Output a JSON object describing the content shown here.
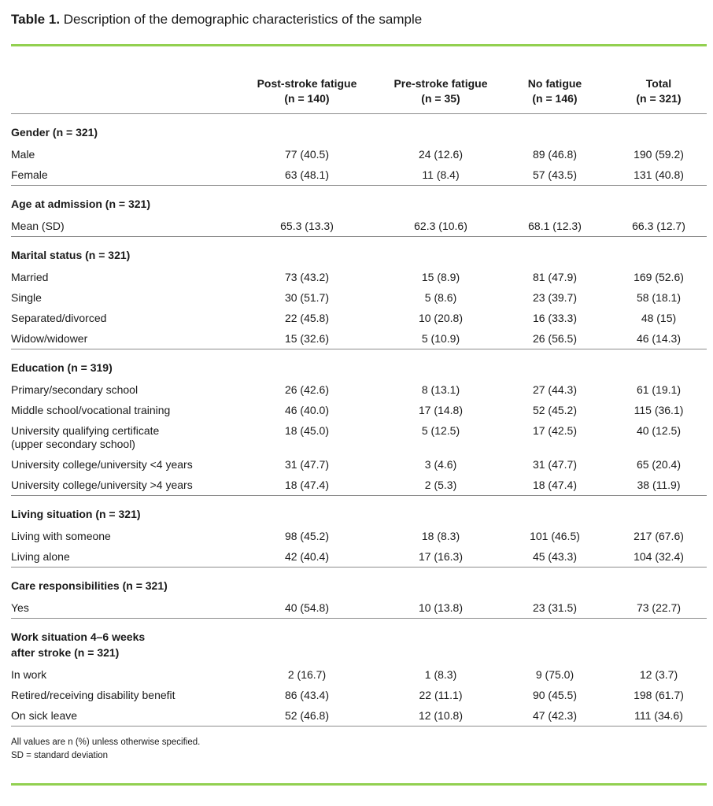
{
  "title": {
    "label": "Table 1.",
    "text": " Description of the demographic characteristics of the sample"
  },
  "colors": {
    "accent_green": "#92d050",
    "separator_gray": "#8c8c8c",
    "text": "#1a1a1a"
  },
  "table": {
    "columns": [
      {
        "line1": "Post-stroke fatigue",
        "line2": "(n = 140)"
      },
      {
        "line1": "Pre-stroke fatigue",
        "line2": "(n = 35)"
      },
      {
        "line1": "No fatigue",
        "line2": "(n = 146)"
      },
      {
        "line1": "Total",
        "line2": "(n = 321)"
      }
    ],
    "sections": [
      {
        "header": "Gender (n = 321)",
        "rows": [
          {
            "label": "Male",
            "values": [
              "77 (40.5)",
              "24 (12.6)",
              "89 (46.8)",
              "190 (59.2)"
            ]
          },
          {
            "label": "Female",
            "values": [
              "63 (48.1)",
              "11 (8.4)",
              "57 (43.5)",
              "131 (40.8)"
            ]
          }
        ]
      },
      {
        "header": "Age at admission (n = 321)",
        "rows": [
          {
            "label": "Mean (SD)",
            "values": [
              "65.3 (13.3)",
              "62.3 (10.6)",
              "68.1 (12.3)",
              "66.3 (12.7)"
            ]
          }
        ]
      },
      {
        "header": "Marital status (n = 321)",
        "rows": [
          {
            "label": "Married",
            "values": [
              "73 (43.2)",
              "15 (8.9)",
              "81 (47.9)",
              "169 (52.6)"
            ]
          },
          {
            "label": "Single",
            "values": [
              "30 (51.7)",
              "5 (8.6)",
              "23 (39.7)",
              "58 (18.1)"
            ]
          },
          {
            "label": "Separated/divorced",
            "values": [
              "22 (45.8)",
              "10 (20.8)",
              "16 (33.3)",
              "48 (15)"
            ]
          },
          {
            "label": "Widow/widower",
            "values": [
              "15 (32.6)",
              "5 (10.9)",
              "26 (56.5)",
              "46 (14.3)"
            ]
          }
        ]
      },
      {
        "header": "Education (n = 319)",
        "rows": [
          {
            "label": "Primary/secondary school",
            "values": [
              "26 (42.6)",
              "8 (13.1)",
              "27 (44.3)",
              "61 (19.1)"
            ]
          },
          {
            "label": "Middle school/vocational training",
            "values": [
              "46 (40.0)",
              "17 (14.8)",
              "52 (45.2)",
              "115 (36.1)"
            ]
          },
          {
            "label": "University qualifying certificate\n(upper secondary school)",
            "values": [
              "18 (45.0)",
              "5 (12.5)",
              "17 (42.5)",
              "40 (12.5)"
            ]
          },
          {
            "label": "University college/university <4 years",
            "values": [
              "31 (47.7)",
              "3 (4.6)",
              "31 (47.7)",
              "65 (20.4)"
            ]
          },
          {
            "label": "University college/university >4 years",
            "values": [
              "18 (47.4)",
              "2 (5.3)",
              "18 (47.4)",
              "38 (11.9)"
            ]
          }
        ]
      },
      {
        "header": "Living situation (n = 321)",
        "rows": [
          {
            "label": "Living with someone",
            "values": [
              "98 (45.2)",
              "18 (8.3)",
              "101 (46.5)",
              "217 (67.6)"
            ]
          },
          {
            "label": "Living alone",
            "values": [
              "42 (40.4)",
              "17 (16.3)",
              "45 (43.3)",
              "104 (32.4)"
            ]
          }
        ]
      },
      {
        "header": "Care responsibilities (n = 321)",
        "rows": [
          {
            "label": "Yes",
            "values": [
              "40 (54.8)",
              "10 (13.8)",
              "23 (31.5)",
              "73 (22.7)"
            ]
          }
        ]
      },
      {
        "header": "Work situation 4–6 weeks\nafter stroke (n = 321)",
        "rows": [
          {
            "label": "In work",
            "values": [
              "2 (16.7)",
              "1 (8.3)",
              "9 (75.0)",
              "12 (3.7)"
            ]
          },
          {
            "label": "Retired/receiving disability benefit",
            "values": [
              "86 (43.4)",
              "22 (11.1)",
              "90 (45.5)",
              "198 (61.7)"
            ]
          },
          {
            "label": "On sick leave",
            "values": [
              "52 (46.8)",
              "12 (10.8)",
              "47 (42.3)",
              "111 (34.6)"
            ]
          }
        ]
      }
    ]
  },
  "footnotes": {
    "line1": "All values are n (%) unless otherwise specified.",
    "line2": "SD = standard deviation"
  }
}
